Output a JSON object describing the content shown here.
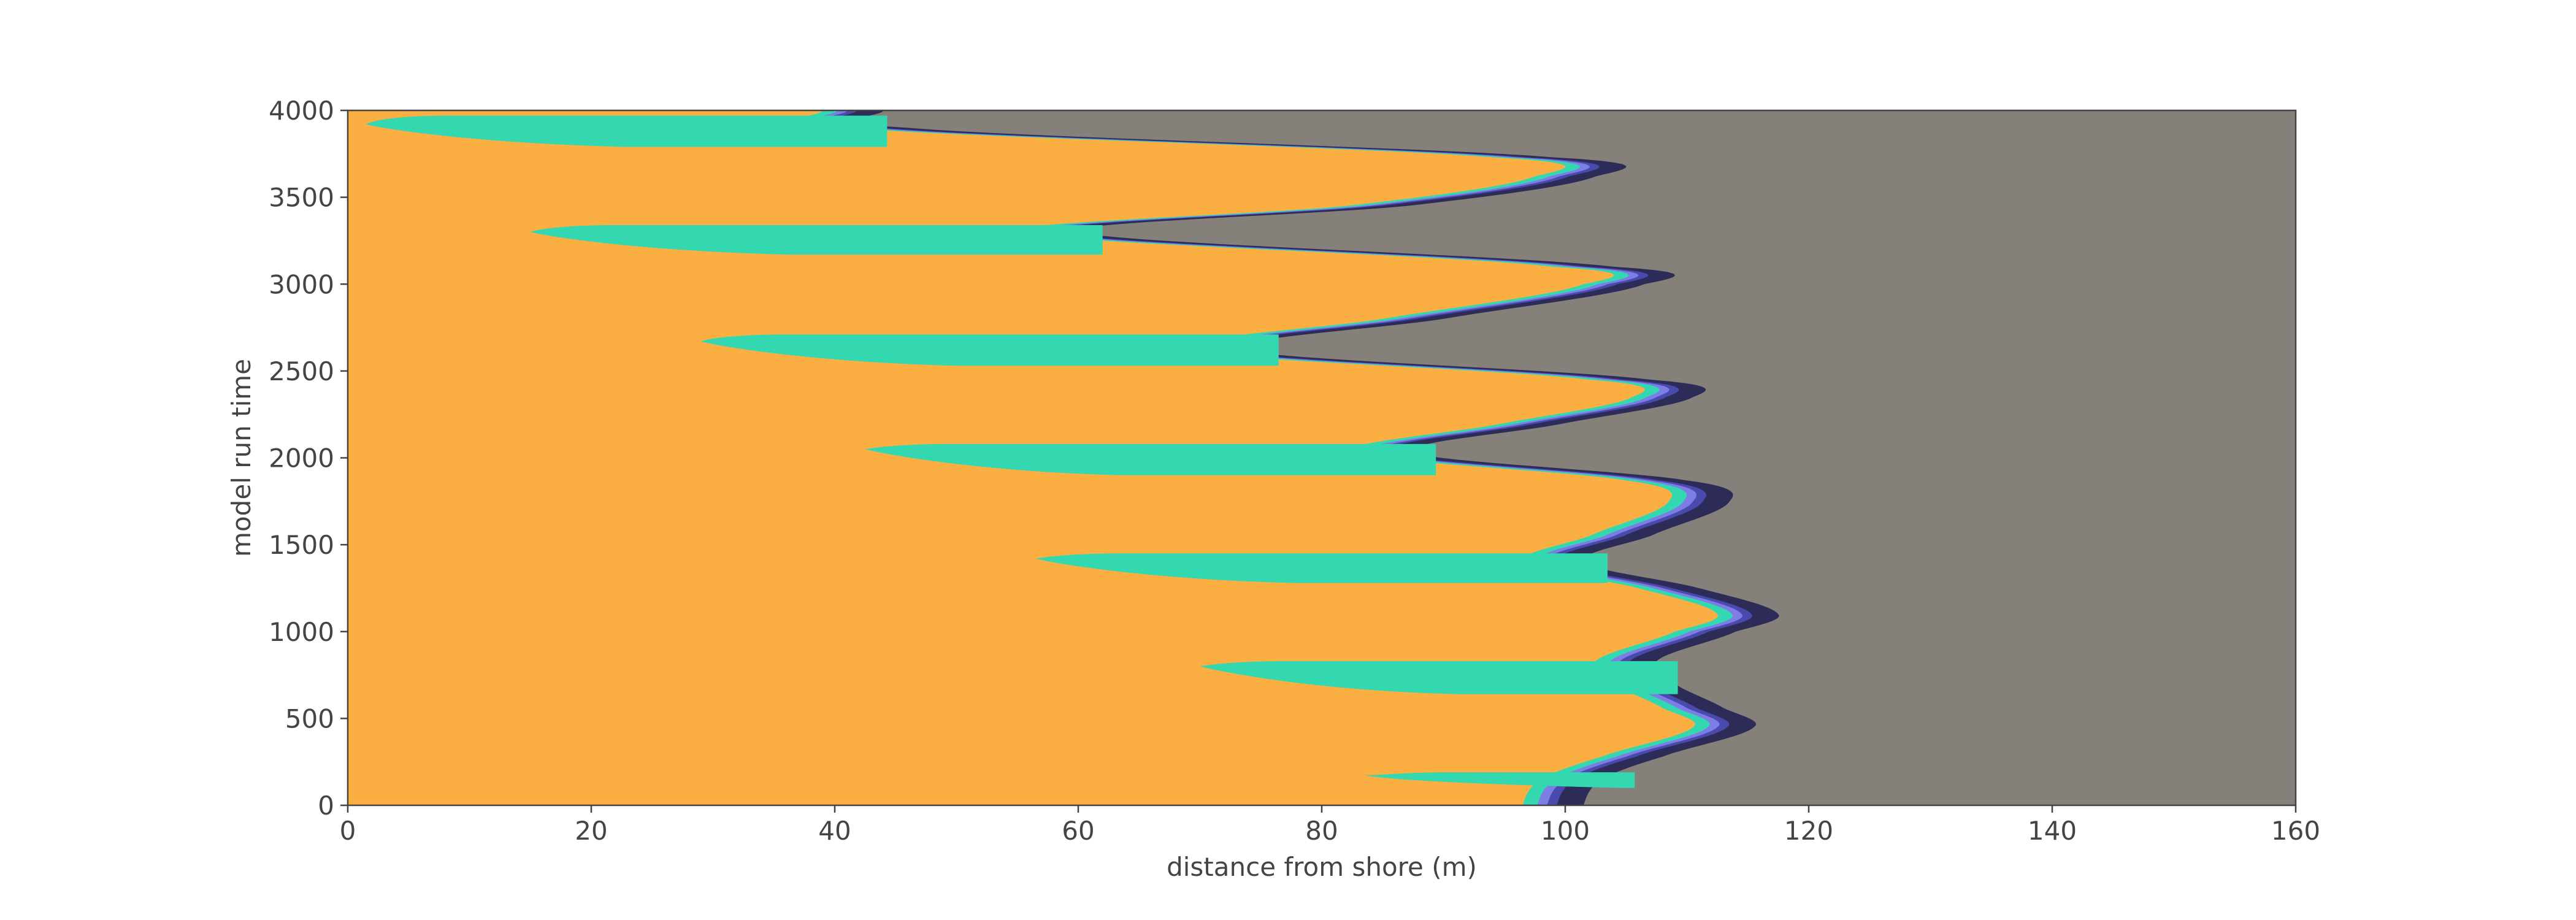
{
  "chart_data": {
    "type": "heatmap",
    "title": "",
    "xlabel": "distance from shore (m)",
    "ylabel": "model run time",
    "xlim": [
      0,
      160
    ],
    "ylim": [
      0,
      4000
    ],
    "xticks": [
      0,
      20,
      40,
      60,
      80,
      100,
      120,
      140,
      160
    ],
    "yticks": [
      0,
      500,
      1000,
      1500,
      2000,
      2500,
      3000,
      3500,
      4000
    ],
    "grid": false,
    "legend": "none",
    "colors": {
      "land": "#fbae42",
      "shallow_water": "#33d8b0",
      "transition_light": "#7c7ee6",
      "transition_mid": "#4a4aae",
      "deep_edge": "#2d2b57",
      "offshore": "#85817a",
      "axis": "#444444"
    },
    "bands": [
      {
        "t_center": 175,
        "t_lo": 100,
        "t_hi": 190,
        "tip_x": 83.5
      },
      {
        "t_center": 800,
        "t_lo": 640,
        "t_hi": 830,
        "tip_x": 70
      },
      {
        "t_center": 1420,
        "t_lo": 1280,
        "t_hi": 1450,
        "tip_x": 56.5
      },
      {
        "t_center": 2050,
        "t_lo": 1900,
        "t_hi": 2080,
        "tip_x": 42.5
      },
      {
        "t_center": 2670,
        "t_lo": 2530,
        "t_hi": 2710,
        "tip_x": 29
      },
      {
        "t_center": 3300,
        "t_lo": 3170,
        "t_hi": 3340,
        "tip_x": 15
      },
      {
        "t_center": 3920,
        "t_lo": 3790,
        "t_hi": 3970,
        "tip_x": 1.5
      }
    ],
    "shoreline_front": [
      {
        "t": 0,
        "x": 101.5
      },
      {
        "t": 150,
        "x": 103
      },
      {
        "t": 280,
        "x": 108
      },
      {
        "t": 450,
        "x": 115.5
      },
      {
        "t": 560,
        "x": 113
      },
      {
        "t": 700,
        "x": 109
      },
      {
        "t": 830,
        "x": 107.5
      },
      {
        "t": 1000,
        "x": 114
      },
      {
        "t": 1100,
        "x": 117.5
      },
      {
        "t": 1250,
        "x": 111
      },
      {
        "t": 1400,
        "x": 101.5
      },
      {
        "t": 1550,
        "x": 107
      },
      {
        "t": 1750,
        "x": 113.5
      },
      {
        "t": 1870,
        "x": 110
      },
      {
        "t": 2030,
        "x": 87.5
      },
      {
        "t": 2200,
        "x": 100
      },
      {
        "t": 2350,
        "x": 110.5
      },
      {
        "t": 2450,
        "x": 107
      },
      {
        "t": 2620,
        "x": 73.5
      },
      {
        "t": 2800,
        "x": 90
      },
      {
        "t": 3000,
        "x": 106.5
      },
      {
        "t": 3100,
        "x": 104
      },
      {
        "t": 3300,
        "x": 60
      },
      {
        "t": 3450,
        "x": 87
      },
      {
        "t": 3620,
        "x": 102.5
      },
      {
        "t": 3730,
        "x": 99
      },
      {
        "t": 3900,
        "x": 46
      },
      {
        "t": 4000,
        "x": 44
      }
    ]
  }
}
